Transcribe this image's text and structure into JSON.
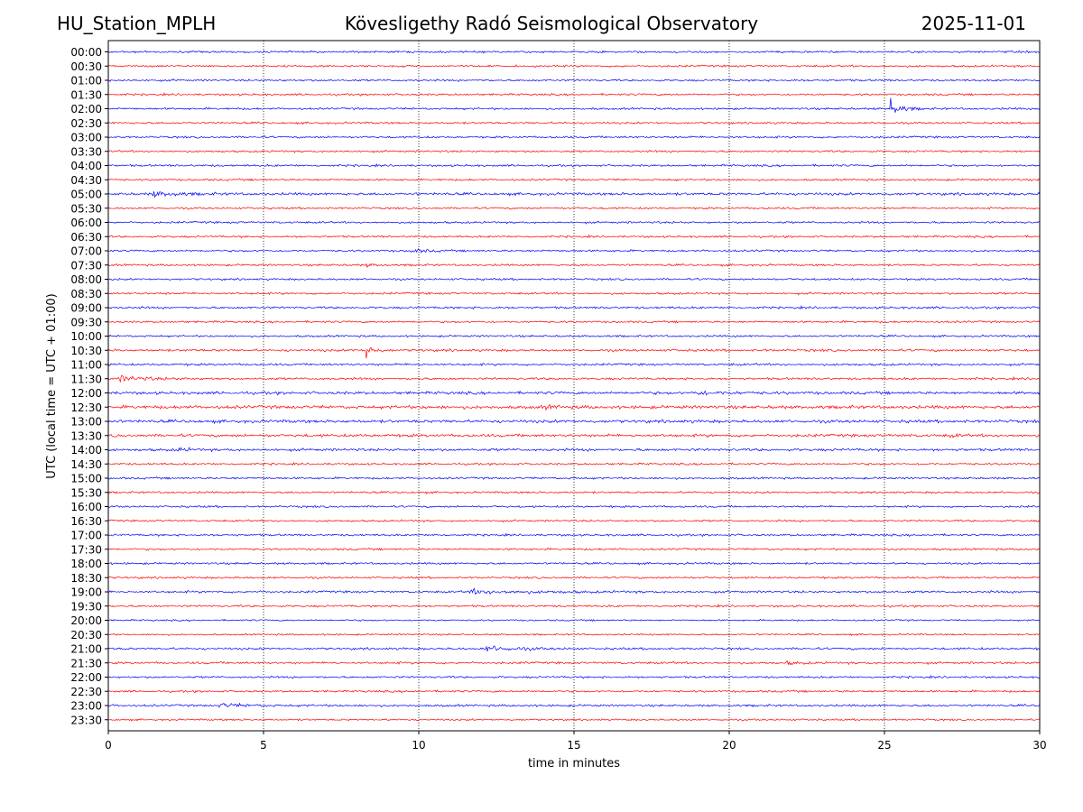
{
  "chart_data": {
    "type": "seismogram-helicorder",
    "station": "HU_Station_MPLH",
    "title": "Kövesligethy Radó Seismological Observatory",
    "date": "2025-11-01",
    "xlabel": "time in minutes",
    "ylabel": "UTC (local time = UTC + 01:00)",
    "xlim": [
      0,
      30
    ],
    "x_ticks": [
      0,
      5,
      10,
      15,
      20,
      25,
      30
    ],
    "vertical_gridlines": [
      5,
      10,
      15,
      20,
      25
    ],
    "trace_colors": [
      "#0000ff",
      "#ff0000"
    ],
    "rows": [
      "00:00",
      "00:30",
      "01:00",
      "01:30",
      "02:00",
      "02:30",
      "03:00",
      "03:30",
      "04:00",
      "04:30",
      "05:00",
      "05:30",
      "06:00",
      "06:30",
      "07:00",
      "07:30",
      "08:00",
      "08:30",
      "09:00",
      "09:30",
      "10:00",
      "10:30",
      "11:00",
      "11:30",
      "12:00",
      "12:30",
      "13:00",
      "13:30",
      "14:00",
      "14:30",
      "15:00",
      "15:30",
      "16:00",
      "16:30",
      "17:00",
      "17:30",
      "18:00",
      "18:30",
      "19:00",
      "19:30",
      "20:00",
      "20:30",
      "21:00",
      "21:30",
      "22:00",
      "22:30",
      "23:00",
      "23:30"
    ],
    "noise_levels": [
      1,
      1,
      1,
      1,
      1,
      1,
      1,
      1,
      1,
      1,
      1.3,
      1,
      1,
      1,
      1,
      1,
      1,
      1,
      1.1,
      1,
      1,
      1.2,
      1.1,
      1.1,
      1.4,
      1.6,
      1.5,
      1.4,
      1.3,
      1,
      1,
      1,
      1,
      1,
      1,
      1,
      1,
      1,
      1.1,
      1,
      0.8,
      0.8,
      1.1,
      1.1,
      1,
      1,
      1.1,
      0.9
    ],
    "events": [
      {
        "row": "02:00",
        "start_min": 25.2,
        "duration_min": 0.9,
        "amplitude": 4.5,
        "spike": 12
      },
      {
        "row": "05:00",
        "start_min": 1.3,
        "duration_min": 1.6,
        "amplitude": 2.5
      },
      {
        "row": "07:00",
        "start_min": 9.7,
        "duration_min": 0.9,
        "amplitude": 2.0
      },
      {
        "row": "07:30",
        "start_min": 8.3,
        "duration_min": 0.5,
        "amplitude": 1.5
      },
      {
        "row": "10:30",
        "start_min": 8.3,
        "duration_min": 0.5,
        "amplitude": 6.0,
        "spike": 9
      },
      {
        "row": "11:30",
        "start_min": 0.3,
        "duration_min": 1.8,
        "amplitude": 2.5
      },
      {
        "row": "12:00",
        "start_min": 18.8,
        "duration_min": 2.0,
        "amplitude": 1.6
      },
      {
        "row": "12:30",
        "start_min": 14.0,
        "duration_min": 0.8,
        "amplitude": 1.6
      },
      {
        "row": "13:30",
        "start_min": 27.0,
        "duration_min": 0.6,
        "amplitude": 1.5
      },
      {
        "row": "14:00",
        "start_min": 2.2,
        "duration_min": 0.8,
        "amplitude": 1.6
      },
      {
        "row": "19:00",
        "start_min": 11.5,
        "duration_min": 3.5,
        "amplitude": 1.9
      },
      {
        "row": "21:00",
        "start_min": 12.1,
        "duration_min": 1.8,
        "amplitude": 2.8
      },
      {
        "row": "21:30",
        "start_min": 21.8,
        "duration_min": 0.8,
        "amplitude": 1.4
      },
      {
        "row": "23:00",
        "start_min": 3.5,
        "duration_min": 1.8,
        "amplitude": 1.8
      }
    ]
  }
}
